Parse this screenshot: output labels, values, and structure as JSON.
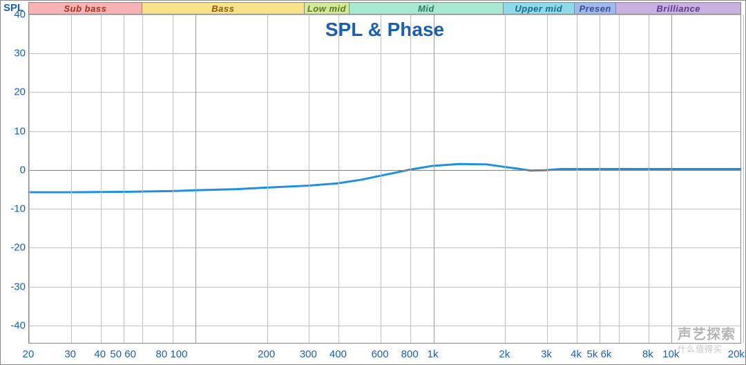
{
  "corner_label": "SPL",
  "chart": {
    "type": "line",
    "title": "SPL & Phase",
    "title_fontsize": 28,
    "title_color": "#1a5fb4",
    "background_color": "#ffffff",
    "grid_color_minor": "#bfbfbf",
    "grid_color_major": "#9a9a9a",
    "border_color": "#888888",
    "x_axis": {
      "scale": "log",
      "min": 20,
      "max": 20000,
      "ticks": [
        20,
        30,
        40,
        50,
        60,
        80,
        100,
        200,
        300,
        400,
        600,
        800,
        1000,
        2000,
        3000,
        4000,
        5000,
        6000,
        8000,
        10000,
        20000
      ],
      "tick_labels": [
        "20",
        "30",
        "40",
        "50 60",
        "",
        "80 100",
        "",
        "200",
        "300",
        "400",
        "600",
        "800",
        "1k",
        "2k",
        "3k",
        "4k",
        "5k 6k",
        "",
        "8k",
        "10k",
        "20kHz"
      ],
      "major": [
        100,
        1000,
        10000
      ],
      "label_color": "#1a5fb4",
      "label_fontsize": 15
    },
    "y_axis": {
      "scale": "linear",
      "min": -45,
      "max": 40,
      "ticks": [
        40,
        30,
        20,
        10,
        0,
        -10,
        -20,
        -30,
        -40
      ],
      "label_color": "#1a5fb4",
      "label_fontsize": 15
    },
    "series": [
      {
        "name": "SPL",
        "color": "#1f8fe0",
        "line_width": 3,
        "points": [
          [
            20,
            -6.0
          ],
          [
            30,
            -6.0
          ],
          [
            50,
            -5.9
          ],
          [
            80,
            -5.7
          ],
          [
            100,
            -5.5
          ],
          [
            150,
            -5.2
          ],
          [
            200,
            -4.8
          ],
          [
            300,
            -4.3
          ],
          [
            400,
            -3.7
          ],
          [
            500,
            -2.8
          ],
          [
            600,
            -1.8
          ],
          [
            800,
            -0.2
          ],
          [
            1000,
            0.8
          ],
          [
            1300,
            1.3
          ],
          [
            1700,
            1.2
          ],
          [
            2000,
            0.6
          ],
          [
            2300,
            0.1
          ],
          [
            2600,
            -0.4
          ],
          [
            3000,
            -0.3
          ],
          [
            3500,
            0.0
          ],
          [
            5000,
            0.0
          ],
          [
            8000,
            0.0
          ],
          [
            12000,
            0.0
          ],
          [
            20000,
            0.0
          ]
        ]
      }
    ],
    "bands": [
      {
        "label": "Sub bass",
        "from": 20,
        "to": 60,
        "color": "#f7b3b3",
        "text_color": "#a03020"
      },
      {
        "label": "Bass",
        "from": 60,
        "to": 290,
        "color": "#f7e28a",
        "text_color": "#8a5a10"
      },
      {
        "label": "Low mid",
        "from": 290,
        "to": 450,
        "color": "#d4e89a",
        "text_color": "#5a7a20"
      },
      {
        "label": "Mid",
        "from": 450,
        "to": 2000,
        "color": "#a8e8d0",
        "text_color": "#2a7a60"
      },
      {
        "label": "Upper mid",
        "from": 2000,
        "to": 4000,
        "color": "#8fd9e8",
        "text_color": "#1a6a8a"
      },
      {
        "label": "Presen",
        "from": 4000,
        "to": 6000,
        "color": "#9fb8e8",
        "text_color": "#3a4a9a"
      },
      {
        "label": "Brilliance",
        "from": 6000,
        "to": 20000,
        "color": "#c8b0e0",
        "text_color": "#5a3a8a"
      }
    ]
  },
  "watermark": {
    "main": "声艺探索",
    "sub": "什么值得买"
  }
}
